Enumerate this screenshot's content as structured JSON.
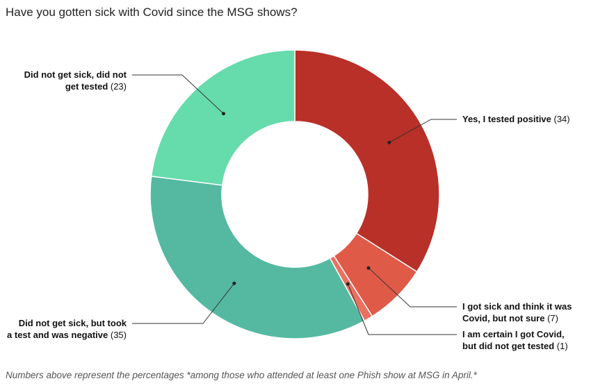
{
  "title": "Have you gotten sick with Covid since the MSG shows?",
  "footnote": "Numbers above represent the percentages *among those who attended at least one Phish show at MSG in April.*",
  "chart_data": {
    "type": "pie",
    "donut": true,
    "values": [
      34,
      7,
      1,
      35,
      23
    ],
    "slices": [
      {
        "label_lines": [
          "Yes, I tested positive"
        ],
        "value": 34,
        "value_text": "(34)",
        "color": "#b83028"
      },
      {
        "label_lines": [
          "I got sick and think it was",
          "Covid, but not sure"
        ],
        "value": 7,
        "value_text": "(7)",
        "color": "#e05a48"
      },
      {
        "label_lines": [
          "I am certain I got Covid,",
          "but did not get tested"
        ],
        "value": 1,
        "value_text": "(1)",
        "color": "#ec7060"
      },
      {
        "label_lines": [
          "Did not get sick, but took",
          "a test and was negative"
        ],
        "value": 35,
        "value_text": "(35)",
        "color": "#55b9a2"
      },
      {
        "label_lines": [
          "Did not get sick, did not",
          "get tested"
        ],
        "value": 23,
        "value_text": "(23)",
        "color": "#66dbac"
      }
    ]
  }
}
